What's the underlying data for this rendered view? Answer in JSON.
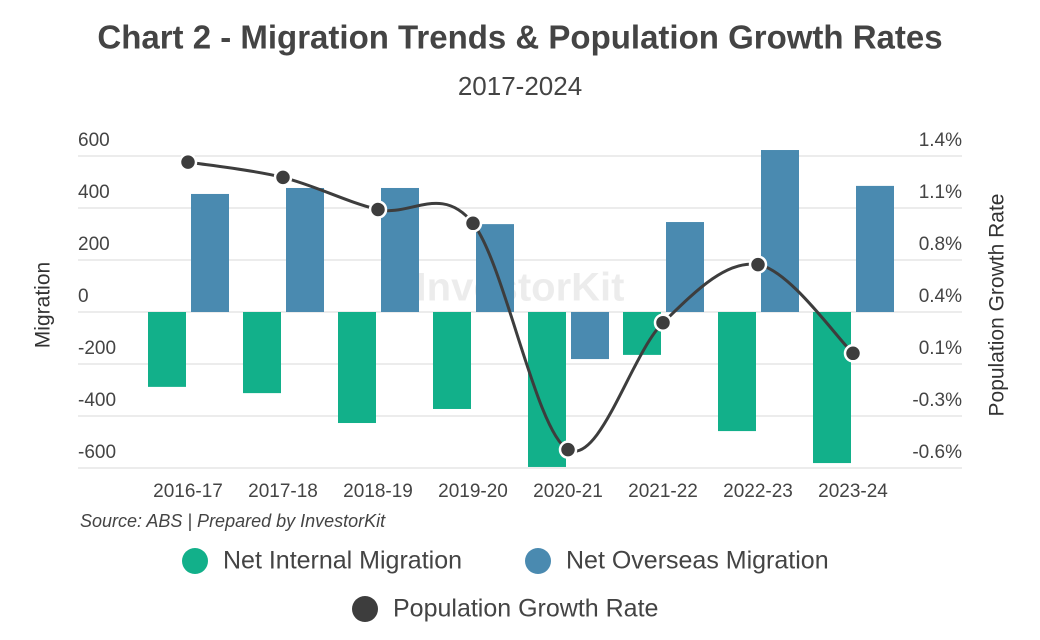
{
  "chart_data": {
    "type": "bar_line",
    "title": "Chart 2 - Migration Trends & Population Growth Rates",
    "subtitle": "2017-2024",
    "source": "Source: ABS | Prepared by InvestorKit",
    "watermark": "InvestorKit",
    "y_label": "Migration",
    "y2_label": "Population Growth Rate",
    "categories": [
      "2016-17",
      "2017-18",
      "2018-19",
      "2019-20",
      "2020-21",
      "2021-22",
      "2022-23",
      "2023-24"
    ],
    "series": [
      {
        "name": "Net Internal Migration",
        "type": "bar",
        "color": "#12b08a",
        "values": [
          -288,
          -312,
          -427,
          -373,
          -596,
          -165,
          -458,
          -581
        ]
      },
      {
        "name": "Net Overseas Migration",
        "type": "bar",
        "color": "#4a8ab0",
        "values": [
          454,
          477,
          477,
          338,
          -181,
          346,
          623,
          485
        ]
      },
      {
        "name": "Population Growth Rate",
        "type": "line",
        "axis": "y2",
        "color": "#3d3d3d",
        "values": [
          1.4,
          1.3,
          1.09,
          1.0,
          -0.48,
          0.35,
          0.73,
          0.15
        ]
      }
    ],
    "ylim": [
      -600,
      600
    ],
    "yticks": [
      600,
      400,
      200,
      0,
      -200,
      -400,
      -600
    ],
    "y2lim": [
      -0.6,
      1.44
    ],
    "y2ticks": [
      {
        "value": 1.44,
        "label": "1.4%"
      },
      {
        "value": 1.1,
        "label": "1.1%"
      },
      {
        "value": 0.76,
        "label": "0.8%"
      },
      {
        "value": 0.42,
        "label": "0.4%"
      },
      {
        "value": 0.08,
        "label": "0.1%"
      },
      {
        "value": -0.26,
        "label": "-0.3%"
      },
      {
        "value": -0.6,
        "label": "-0.6%"
      }
    ],
    "grid": true
  }
}
